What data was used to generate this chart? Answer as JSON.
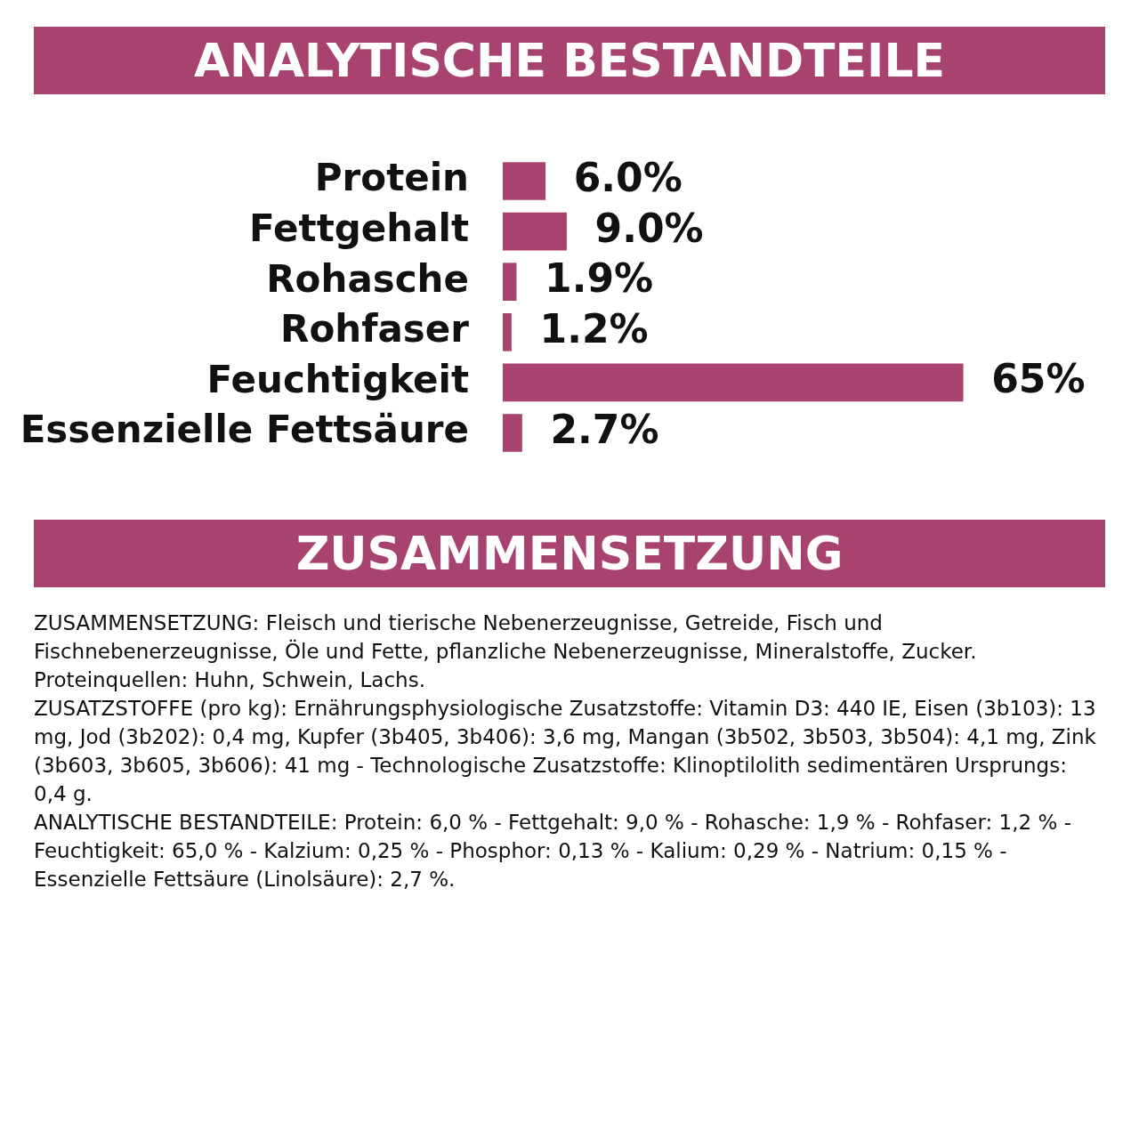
{
  "chart_data": {
    "type": "bar",
    "orientation": "horizontal",
    "title": "ANALYTISCHE BESTANDTEILE",
    "subtitle": "ZUSAMMENSETZUNG",
    "categories": [
      "Protein",
      "Fettgehalt",
      "Rohasche",
      "Rohfaser",
      "Feuchtigkeit",
      "Essenzielle Fettsäure"
    ],
    "values": [
      6.0,
      9.0,
      1.9,
      1.2,
      65,
      2.7
    ],
    "value_labels": [
      "6.0%",
      "9.0%",
      "1.9%",
      "1.2%",
      "65%",
      "2.7%"
    ],
    "color": "#a8426f",
    "grid": false,
    "legend": false,
    "tick_labels": "y",
    "annotations": [
      "ZUSAMMENSETZUNG: Fleisch und tierische Nebenerzeugnisse, Getreide, Fisch und Fischnebenerzeugnisse, Öle und Fette, pflanzliche Nebenerzeugnisse, Mineralstoffe, Zucker.",
      "Proteinquellen: Huhn, Schwein, Lachs.",
      "ZUSATZSTOFFE (pro kg): Ernährungsphysiologische Zusatzstoffe: Vitamin D3: 440 IE, Eisen (3b103): 13 mg, Jod (3b202): 0,4 mg, Kupfer (3b405, 3b406): 3,6 mg, Mangan (3b502, 3b503, 3b504): 4,1 mg, Zink (3b603, 3b605, 3b606): 41 mg - Technologische Zusatzstoffe: Klinoptilolith sedimentären Ursprungs: 0,4 g.",
      "ANALYTISCHE BESTANDTEILE: Protein: 6,0 % - Fettgehalt: 9,0 % - Rohasche: 1,9 % - Rohfaser: 1,2 % - Feuchtigkeit: 65,0 % - Kalzium: 0,25 % - Phosphor: 0,13 % - Kalium: 0,29 % - Natrium: 0,15 % - Essenzielle Fettsäure (Linolsäure): 2,7 %."
    ]
  }
}
